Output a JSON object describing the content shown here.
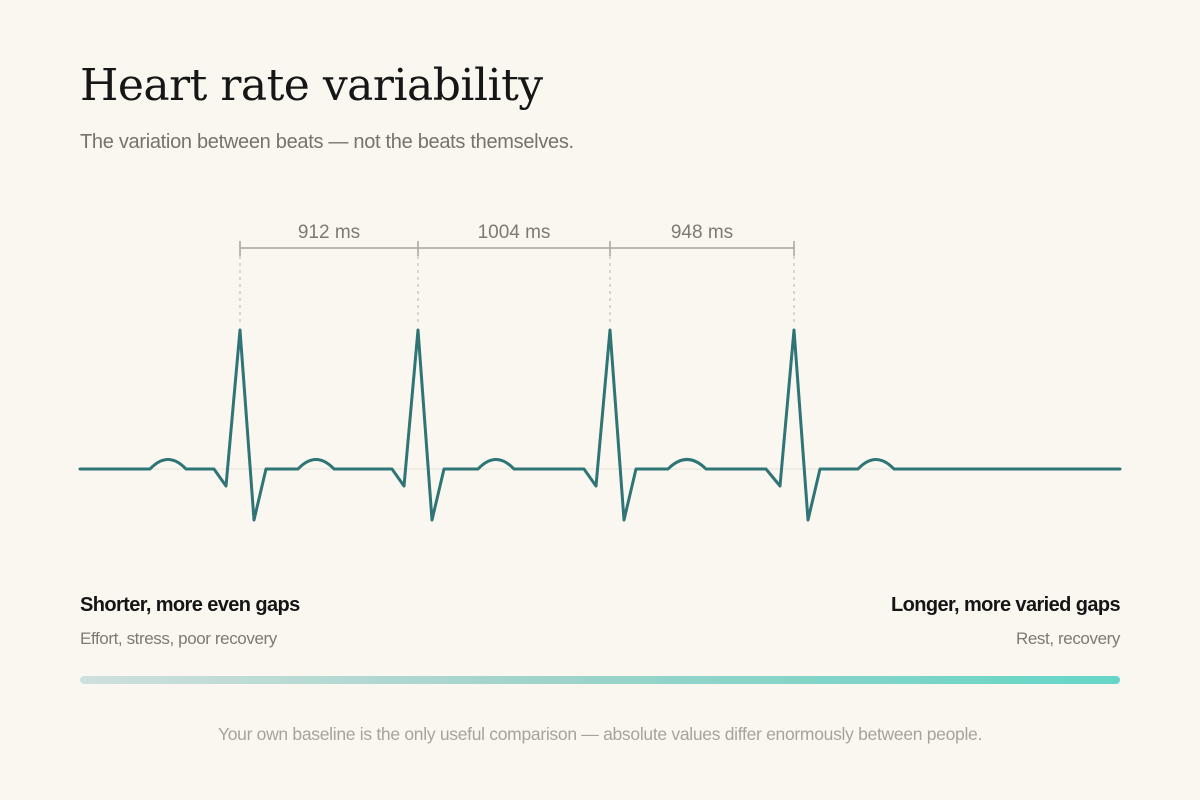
{
  "header": {
    "title": "Heart rate variability",
    "subtitle": "The variation between beats — not the beats themselves."
  },
  "diagram": {
    "intervals": [
      "912 ms",
      "1004 ms",
      "948 ms"
    ],
    "trace_color": "#2f7476",
    "bracket_color": "#a9a49c"
  },
  "scale": {
    "left_heading": "Shorter, more even gaps",
    "left_description": "Effort, stress, poor recovery",
    "right_heading": "Longer, more varied gaps",
    "right_description": "Rest, recovery",
    "gradient_start_color": "#cfe0dc",
    "gradient_end_color": "#64d6c5"
  },
  "footnote": "Your own baseline is the only useful comparison — absolute values differ enormously between people."
}
